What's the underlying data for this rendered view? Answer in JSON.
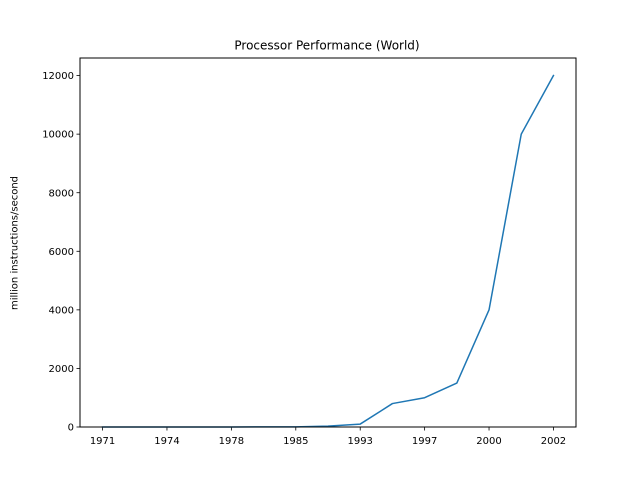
{
  "chart_data": {
    "type": "line",
    "title": "Processor Performance (World)",
    "xlabel": "",
    "ylabel": "million instructions/second",
    "x": [
      0,
      1,
      2,
      3,
      4,
      5,
      6,
      7,
      8,
      9,
      10,
      11,
      12,
      13,
      14
    ],
    "xticks": [
      0,
      2,
      4,
      6,
      8,
      10,
      12,
      14
    ],
    "xtick_labels": [
      "1971",
      "1974",
      "1978",
      "1985",
      "1993",
      "1997",
      "2000",
      "2002"
    ],
    "xlim": [
      -0.7,
      14.7
    ],
    "ylim": [
      0,
      12600
    ],
    "yticks": [
      0,
      2000,
      4000,
      6000,
      8000,
      10000,
      12000
    ],
    "ytick_labels": [
      "0",
      "2000",
      "4000",
      "6000",
      "8000",
      "10000",
      "12000"
    ],
    "grid": false,
    "series": [
      {
        "values": [
          0.1,
          0.3,
          0.6,
          1,
          2,
          3,
          5,
          30,
          100,
          800,
          1000,
          1500,
          4000,
          10000,
          12000
        ],
        "color": "#1f77b4"
      }
    ]
  }
}
